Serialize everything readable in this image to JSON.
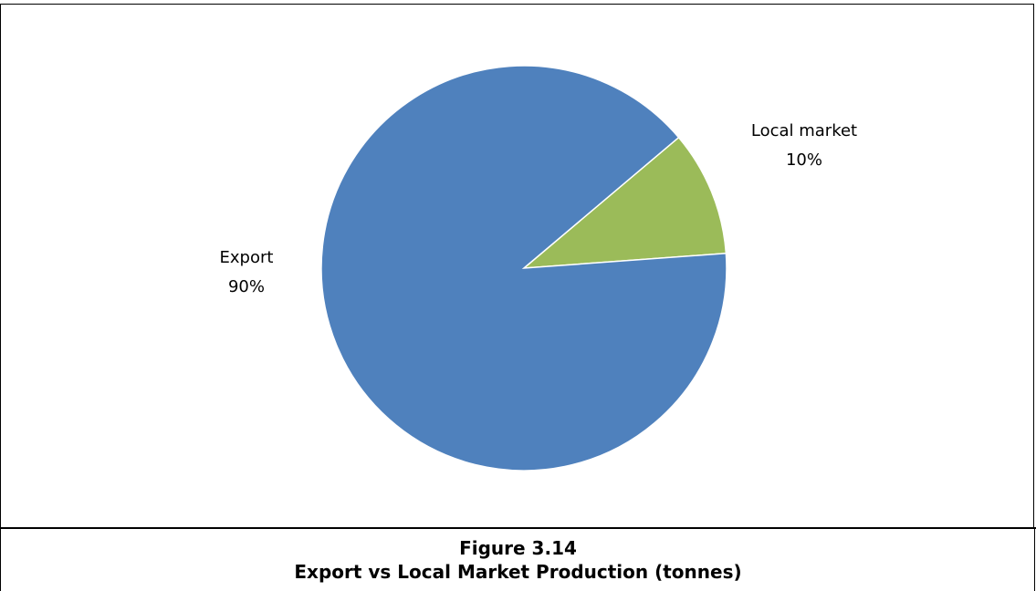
{
  "chart_data": {
    "type": "pie",
    "slices": [
      {
        "label": "Export",
        "value": 90,
        "percent_label": "90%",
        "color": "#4F81BD"
      },
      {
        "label": "Local market",
        "value": 10,
        "percent_label": "10%",
        "color": "#9BBB59"
      }
    ],
    "legend": "none",
    "data_labels": "outside"
  },
  "caption": {
    "figure_number": "Figure 3.14",
    "title": "Export vs Local Market Production (tonnes)"
  }
}
